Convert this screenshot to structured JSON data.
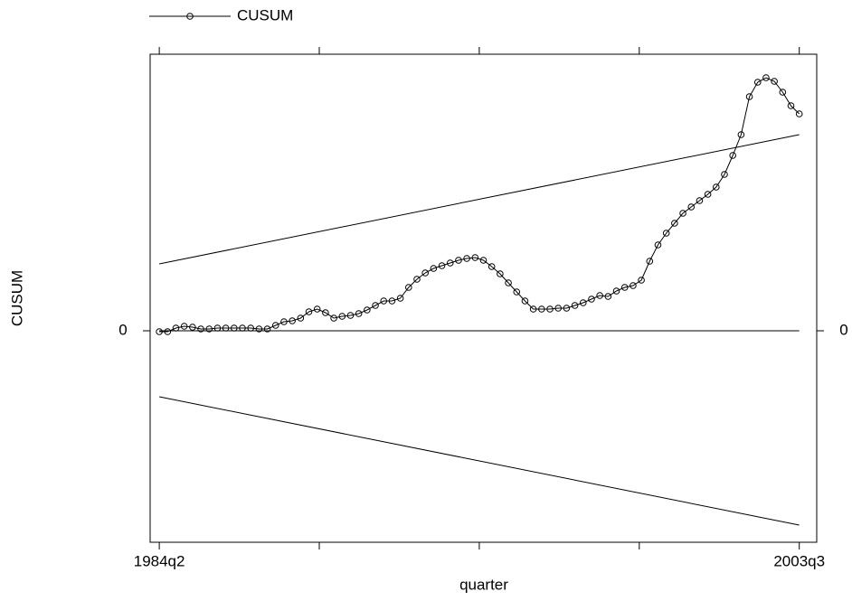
{
  "chart_data": {
    "type": "line",
    "y_label": "CUSUM",
    "x_label": "quarter",
    "x": [
      97,
      98,
      99,
      100,
      101,
      102,
      103,
      104,
      105,
      106,
      107,
      108,
      109,
      110,
      111,
      112,
      113,
      114,
      115,
      116,
      117,
      118,
      119,
      120,
      121,
      122,
      123,
      124,
      125,
      126,
      127,
      128,
      129,
      130,
      131,
      132,
      133,
      134,
      135,
      136,
      137,
      138,
      139,
      140,
      141,
      142,
      143,
      144,
      145,
      146,
      147,
      148,
      149,
      150,
      151,
      152,
      153,
      154,
      155,
      156,
      157,
      158,
      159,
      160,
      161,
      162,
      163,
      164,
      165,
      166,
      167,
      168,
      169,
      170,
      171,
      172,
      173,
      174
    ],
    "series": [
      {
        "name": "CUSUM",
        "color": "#000000",
        "marker": "circle",
        "values": [
          -0.1,
          -0.1,
          0.3,
          0.5,
          0.4,
          0.2,
          0.2,
          0.3,
          0.3,
          0.3,
          0.3,
          0.3,
          0.2,
          0.2,
          0.6,
          1.0,
          1.1,
          1.4,
          2.1,
          2.4,
          2.0,
          1.4,
          1.6,
          1.7,
          1.9,
          2.3,
          2.8,
          3.3,
          3.3,
          3.6,
          4.8,
          5.7,
          6.4,
          6.9,
          7.2,
          7.5,
          7.8,
          8.0,
          8.1,
          7.8,
          7.1,
          6.3,
          5.3,
          4.3,
          3.3,
          2.4,
          2.4,
          2.4,
          2.5,
          2.5,
          2.8,
          3.1,
          3.5,
          3.9,
          3.8,
          4.4,
          4.8,
          5.0,
          5.6,
          7.7,
          9.5,
          10.8,
          11.9,
          13.0,
          13.7,
          14.4,
          15.1,
          15.9,
          17.3,
          19.4,
          21.7,
          25.9,
          27.5,
          28.0,
          27.6,
          26.4,
          24.9,
          24.0
        ]
      }
    ],
    "bounds": {
      "x": [
        97,
        174
      ],
      "upper": [
        7.4,
        21.7
      ],
      "lower": [
        -7.3,
        -21.5
      ],
      "color": "#000000"
    },
    "xlim": [
      95.9,
      176.1
    ],
    "xticks": [
      {
        "value": 97,
        "label": "1984q2"
      },
      {
        "value": 174,
        "label": "2003q3"
      }
    ],
    "xticks_unlabeled": [
      116.25,
      135.5,
      154.75
    ],
    "ylim": [
      -23.4,
      30.6
    ],
    "yticks": [
      0
    ],
    "y2lim": [
      -23.4,
      30.6
    ],
    "y2ticks": [
      0
    ],
    "legend": "top-left"
  }
}
